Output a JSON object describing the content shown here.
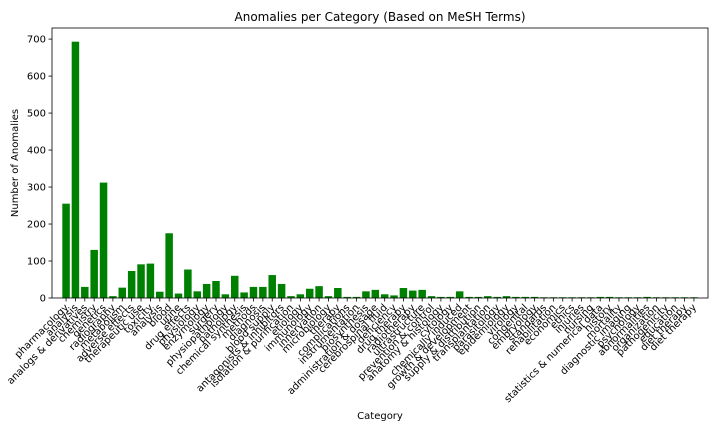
{
  "chart_data": {
    "type": "bar",
    "title": "Anomalies per Category (Based on MeSH Terms)",
    "xlabel": "Category",
    "ylabel": "Number of Anomalies",
    "ylim": [
      0,
      730
    ],
    "yticks": [
      0,
      100,
      200,
      300,
      400,
      500,
      600,
      700
    ],
    "grid": false,
    "bar_color": "#008000",
    "categories": [
      "pharmacology",
      "analysis",
      "analogs & derivatives",
      "chemistry",
      "genetics",
      "radiography",
      "metabolism",
      "adverse effects",
      "therapeutic use",
      "toxicity",
      "analysis",
      "blood",
      "urine",
      "drug effects",
      "physiology",
      "enzymology",
      "surgery",
      "physiopathology",
      "pathology",
      "chemical synthesis",
      "methods",
      "diagnosis",
      "blood supply",
      "antagonists & inhibitors",
      "isolation & purification",
      "etiology",
      "immunology",
      "innervation",
      "microbiology",
      "therapy",
      "complications",
      "instrumentation",
      "biosynthesis",
      "administration & dosage",
      "cerebrospinal fluid",
      "deficiency",
      "drug therapy",
      "radiotherapy",
      "ultrastructure",
      "prevention & control",
      "anatomy & histology",
      "cytology",
      "chemically induced",
      "growth & development",
      "supply & distribution",
      "transplantation",
      "parasitology",
      "epidemiology",
      "virology",
      "congenital",
      "embryology",
      "standards",
      "rehabilitation",
      "economics",
      "ethics",
      "injuries",
      "nursing",
      "statistics & numerical data",
      "history",
      "mortality",
      "diagnostic imaging",
      "psychology",
      "abnormalities",
      "organization",
      "pathogenicity",
      "education",
      "diet therapy",
      "diet therapy"
    ],
    "values": [
      255,
      693,
      30,
      130,
      312,
      5,
      28,
      73,
      91,
      93,
      17,
      175,
      12,
      77,
      18,
      38,
      46,
      10,
      60,
      15,
      30,
      30,
      62,
      38,
      5,
      10,
      25,
      32,
      5,
      27,
      3,
      3,
      18,
      22,
      10,
      7,
      27,
      20,
      22,
      5,
      3,
      3,
      18,
      3,
      3,
      5,
      3,
      5,
      3,
      3,
      3,
      2,
      2,
      2,
      2,
      2,
      2,
      3,
      3,
      2,
      2,
      2,
      3,
      2,
      2,
      2,
      2,
      2
    ],
    "category_labels": [
      "pharmacology",
      "analysis",
      "analogs & derivatives",
      "chemistry",
      "genetics",
      "radiography",
      "metabolism",
      "adverse effects",
      "therapeutic use",
      "toxicity",
      "analysis",
      "blood",
      "urine",
      "drug effects",
      "physiology",
      "enzymology",
      "surgery",
      "physiopathology",
      "pathology",
      "chemical synthesis",
      "methods",
      "diagnosis",
      "blood supply",
      "antagonists & inhibitors",
      "isolation & purification",
      "etiology",
      "immunology",
      "innervation",
      "microbiology",
      "therapy",
      "complications",
      "instrumentation",
      "biosynthesis",
      "administration & dosage",
      "cerebrospinal fluid",
      "deficiency",
      "drug therapy",
      "radiotherapy",
      "ultrastructure",
      "prevention & control",
      "anatomy & histology",
      "cytology",
      "chemically induced",
      "growth & development",
      "supply & distribution",
      "transplantation",
      "parasitology",
      "epidemiology",
      "virology",
      "congenital",
      "embryology",
      "standards",
      "rehabilitation",
      "economics",
      "ethics",
      "injuries",
      "nursing",
      "statistics & numerical data",
      "history",
      "mortality",
      "diagnostic imaging",
      "psychology",
      "abnormalities",
      "organization",
      "pathogenicity",
      "education",
      "diet therapy",
      "diet therapy"
    ]
  }
}
